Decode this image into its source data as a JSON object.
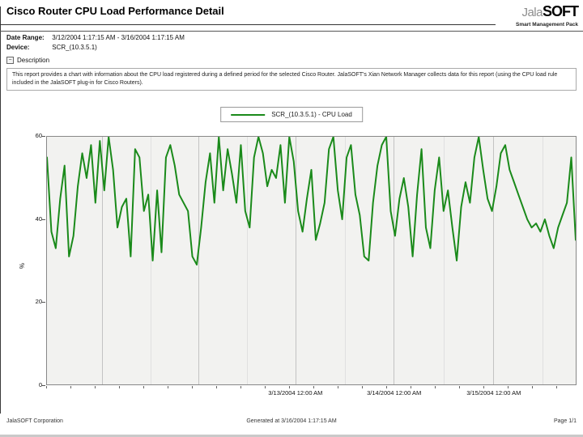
{
  "header": {
    "title": "Cisco Router CPU Load Performance Detail",
    "logo": {
      "jala": "Jala",
      "soft": "SOFT",
      "tagline": "Smart Management Pack"
    }
  },
  "meta": {
    "date_range_label": "Date Range:",
    "date_range_value": "3/12/2004 1:17:15 AM - 3/16/2004 1:17:15 AM",
    "device_label": "Device:",
    "device_value": "SCR_(10.3.5.1)"
  },
  "description": {
    "collapse_icon": "−",
    "header": "Description",
    "text": "This report provides a chart with information about the CPU load registered during a defined period for the selected Cisco Router. JalaSOFT's Xian Network Manager collects data for this report (using the CPU load rule included in the JalaSOFT plug-in for Cisco Routers)."
  },
  "legend": {
    "label": "SCR_(10.3.5.1) - CPU Load",
    "line_color": "#1a8a1a"
  },
  "chart_data": {
    "type": "line",
    "title": "",
    "xlabel": "",
    "ylabel": "%",
    "ylim": [
      0,
      60
    ],
    "yticks": [
      0,
      20,
      40,
      60
    ],
    "xticklabels": [
      "3/13/2004 12:00 AM",
      "3/14/2004 12:00 AM",
      "3/15/2004 12:00 AM"
    ],
    "grid": "vertical",
    "legend_position": "top-center",
    "plot_background": "#f2f2f0",
    "series": [
      {
        "name": "SCR_(10.3.5.1) - CPU Load",
        "color": "#1a8a1a",
        "values": [
          55,
          37,
          33,
          45,
          53,
          31,
          36,
          48,
          56,
          50,
          58,
          44,
          59,
          47,
          60,
          52,
          38,
          43,
          45,
          31,
          57,
          55,
          42,
          46,
          30,
          47,
          32,
          55,
          58,
          53,
          46,
          44,
          42,
          31,
          29,
          38,
          49,
          56,
          44,
          60,
          47,
          57,
          51,
          44,
          58,
          42,
          38,
          55,
          60,
          56,
          48,
          52,
          50,
          58,
          44,
          60,
          54,
          42,
          37,
          45,
          52,
          35,
          39,
          44,
          57,
          60,
          47,
          40,
          55,
          58,
          46,
          41,
          31,
          30,
          44,
          53,
          58,
          60,
          42,
          36,
          45,
          50,
          43,
          31,
          46,
          57,
          38,
          33,
          47,
          55,
          42,
          47,
          38,
          30,
          43,
          49,
          44,
          55,
          60,
          52,
          45,
          42,
          48,
          56,
          58,
          52,
          49,
          46,
          43,
          40,
          38,
          39,
          37,
          40,
          36,
          33,
          38,
          41,
          44,
          55,
          35
        ]
      }
    ]
  },
  "footer": {
    "left": "JalaSOFT Corporation",
    "center": "Generated at 3/16/2004 1:17:15 AM",
    "right": "Page 1/1"
  }
}
